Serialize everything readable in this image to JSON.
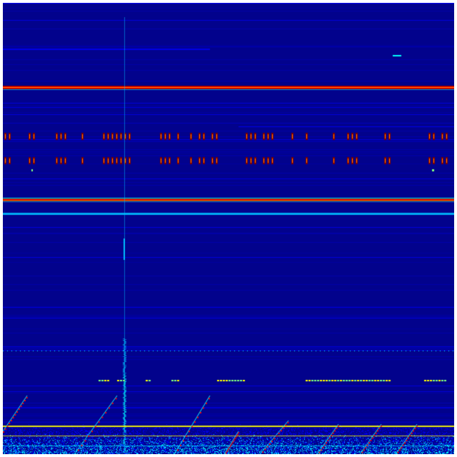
{
  "spectrogram": {
    "colormap": [
      "#00007f",
      "#0000ff",
      "#00bfff",
      "#00ffff",
      "#7fff7f",
      "#ffff00",
      "#ff7f00",
      "#ff0000",
      "#7f0000"
    ],
    "background": "#02028c"
  }
}
